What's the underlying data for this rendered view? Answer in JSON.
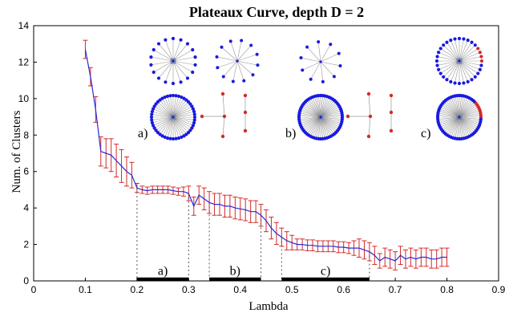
{
  "chart_data": {
    "type": "line",
    "title": "Plateaux Curve, depth D = 2",
    "xlabel": "Lambda",
    "ylabel": "Num. of Clusters",
    "xlim": [
      0,
      0.9
    ],
    "ylim": [
      0,
      14
    ],
    "xticks": [
      "0",
      "0.1",
      "0.2",
      "0.3",
      "0.4",
      "0.5",
      "0.6",
      "0.7",
      "0.8",
      "0.9"
    ],
    "yticks": [
      "0",
      "2",
      "4",
      "6",
      "8",
      "10",
      "12",
      "14"
    ],
    "grid": false,
    "colors": {
      "line": "#2a2ad8",
      "errorbar": "#d42a2a",
      "plateau": "#000000",
      "node_blue": "#1a1ae0",
      "node_red": "#d42a2a",
      "center": "#7a8aa0"
    },
    "series": [
      {
        "x": [
          0.1,
          0.11,
          0.12,
          0.13,
          0.14,
          0.15,
          0.16,
          0.17,
          0.18,
          0.19,
          0.2,
          0.21,
          0.22,
          0.23,
          0.24,
          0.25,
          0.26,
          0.27,
          0.28,
          0.29,
          0.3,
          0.31,
          0.32,
          0.33,
          0.34,
          0.35,
          0.36,
          0.37,
          0.38,
          0.39,
          0.4,
          0.41,
          0.42,
          0.43,
          0.44,
          0.45,
          0.46,
          0.47,
          0.48,
          0.49,
          0.5,
          0.51,
          0.52,
          0.53,
          0.54,
          0.55,
          0.56,
          0.57,
          0.58,
          0.59,
          0.6,
          0.61,
          0.62,
          0.63,
          0.64,
          0.65,
          0.66,
          0.67,
          0.68,
          0.69,
          0.7,
          0.71,
          0.72,
          0.73,
          0.74,
          0.75,
          0.76,
          0.77,
          0.78,
          0.79,
          0.8
        ],
        "y": [
          12.7,
          11.2,
          9.4,
          7.1,
          7.0,
          6.9,
          6.6,
          6.3,
          6.0,
          5.8,
          5.1,
          5.0,
          4.95,
          5.0,
          5.0,
          5.0,
          5.0,
          4.95,
          4.9,
          4.9,
          4.8,
          4.1,
          4.7,
          4.5,
          4.3,
          4.2,
          4.2,
          4.1,
          4.1,
          4.0,
          3.95,
          3.9,
          3.8,
          3.8,
          3.6,
          3.3,
          2.9,
          2.6,
          2.4,
          2.2,
          2.1,
          2.0,
          2.0,
          1.95,
          1.95,
          1.9,
          1.9,
          1.9,
          1.9,
          1.85,
          1.85,
          1.8,
          1.8,
          1.8,
          1.7,
          1.6,
          1.4,
          1.1,
          1.3,
          1.2,
          1.1,
          1.4,
          1.2,
          1.3,
          1.2,
          1.3,
          1.3,
          1.2,
          1.2,
          1.3,
          1.3
        ],
        "err": [
          0.5,
          0.5,
          0.7,
          0.8,
          0.8,
          0.9,
          0.9,
          0.9,
          0.8,
          0.7,
          0.25,
          0.2,
          0.2,
          0.2,
          0.2,
          0.2,
          0.2,
          0.2,
          0.2,
          0.25,
          0.4,
          0.5,
          0.5,
          0.6,
          0.6,
          0.6,
          0.6,
          0.6,
          0.6,
          0.6,
          0.6,
          0.6,
          0.6,
          0.6,
          0.6,
          0.6,
          0.6,
          0.6,
          0.5,
          0.5,
          0.4,
          0.3,
          0.3,
          0.3,
          0.3,
          0.3,
          0.3,
          0.3,
          0.3,
          0.3,
          0.3,
          0.3,
          0.4,
          0.5,
          0.5,
          0.5,
          0.5,
          0.4,
          0.5,
          0.5,
          0.5,
          0.5,
          0.5,
          0.5,
          0.5,
          0.5,
          0.5,
          0.5,
          0.5,
          0.5,
          0.5
        ]
      }
    ],
    "plateaus": [
      {
        "label": "a)",
        "from": 0.2,
        "to": 0.3
      },
      {
        "label": "b)",
        "from": 0.34,
        "to": 0.44
      },
      {
        "label": "c)",
        "from": 0.48,
        "to": 0.65
      }
    ],
    "inset_labels": [
      "a)",
      "b)",
      "c)"
    ]
  }
}
